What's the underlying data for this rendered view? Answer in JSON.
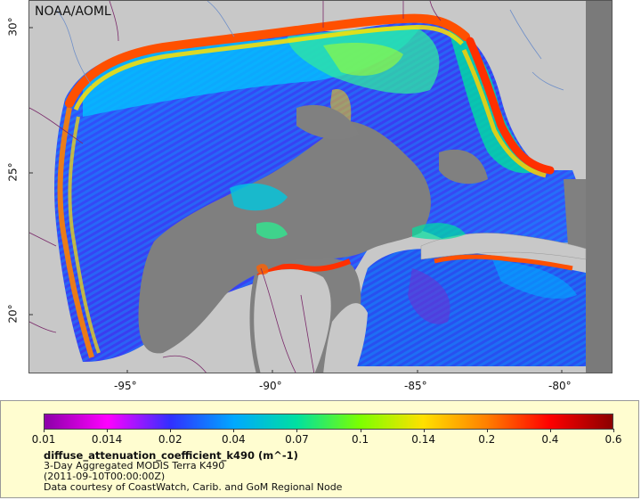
{
  "map": {
    "credit": "NOAA/AOML",
    "x_ticks": [
      {
        "value": -95,
        "label": "-95°"
      },
      {
        "value": -90,
        "label": "-90°"
      },
      {
        "value": -85,
        "label": "-85°"
      },
      {
        "value": -80,
        "label": "-80°"
      }
    ],
    "y_ticks": [
      {
        "value": 30,
        "label": "30°"
      },
      {
        "value": 25,
        "label": "25°"
      },
      {
        "value": 20,
        "label": "20°"
      }
    ],
    "lon_range": [
      -98.3,
      -78.0
    ],
    "lat_range": [
      18.3,
      31.0
    ],
    "colors": {
      "land": "#c8c8c8",
      "no_data": "#808080",
      "border": "#7a2a6a",
      "river": "#6f8fc8"
    }
  },
  "legend": {
    "colorbar_ticks": [
      "0.01",
      "0.014",
      "0.02",
      "0.04",
      "0.07",
      "0.1",
      "0.14",
      "0.2",
      "0.4",
      "0.6"
    ],
    "colorbar_colors": [
      "#8b00a8",
      "#ff00ff",
      "#3030ff",
      "#00a8ff",
      "#00e0a0",
      "#7cff00",
      "#ffe000",
      "#ff8000",
      "#ff0000",
      "#8b0000"
    ],
    "variable": "diffuse_attenuation_coefficient_k490 (m^-1)",
    "line1": "3-Day Aggregated MODIS Terra K490",
    "line2": "(2011-09-10T00:00:00Z)",
    "line3": "Data courtesy of CoastWatch, Carib. and GoM Regional Node"
  }
}
